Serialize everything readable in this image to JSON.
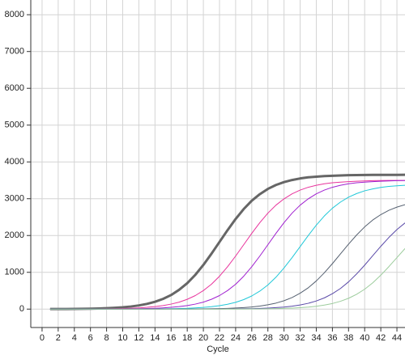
{
  "chart_data": {
    "type": "line",
    "x_label": "Cycle",
    "x": [
      1,
      2,
      3,
      4,
      5,
      6,
      7,
      8,
      9,
      10,
      11,
      12,
      13,
      14,
      15,
      16,
      17,
      18,
      19,
      20,
      21,
      22,
      23,
      24,
      25,
      26,
      27,
      28,
      29,
      30,
      31,
      32,
      33,
      34,
      35,
      36,
      37,
      38,
      39,
      40,
      41,
      42,
      43,
      44,
      45
    ],
    "series": [
      {
        "color": "#666666",
        "width": 3,
        "values": [
          2,
          3,
          4,
          6,
          8,
          12,
          17,
          24,
          35,
          50,
          70,
          100,
          142,
          199,
          277,
          383,
          526,
          704,
          931,
          1201,
          1504,
          1825,
          2146,
          2449,
          2719,
          2946,
          3124,
          3267,
          3373,
          3451,
          3508,
          3551,
          3581,
          3599,
          3614,
          3624,
          3632,
          3639,
          3643,
          3646,
          3647,
          3648,
          3649,
          3649,
          3650
        ]
      },
      {
        "color": "#e8339c",
        "width": 1,
        "values": [
          1,
          1,
          1,
          2,
          3,
          4,
          6,
          8,
          12,
          16,
          23,
          34,
          48,
          68,
          96,
          136,
          190,
          266,
          368,
          504,
          676,
          893,
          1152,
          1442,
          1750,
          2058,
          2349,
          2608,
          2825,
          2996,
          3133,
          3234,
          3311,
          3364,
          3406,
          3434,
          3451,
          3465,
          3476,
          3483,
          3490,
          3493,
          3496,
          3497,
          3498
        ]
      },
      {
        "color": "#a020d0",
        "width": 1,
        "values": [
          0,
          0,
          0,
          1,
          1,
          1,
          2,
          3,
          4,
          6,
          8,
          12,
          16,
          23,
          34,
          48,
          68,
          96,
          136,
          190,
          266,
          368,
          504,
          676,
          893,
          1152,
          1442,
          1750,
          2058,
          2349,
          2608,
          2825,
          2996,
          3133,
          3234,
          3311,
          3364,
          3406,
          3434,
          3451,
          3465,
          3476,
          3483,
          3490,
          3493
        ]
      },
      {
        "color": "#20c8d8",
        "width": 1,
        "values": [
          0,
          0,
          0,
          0,
          0,
          0,
          0,
          1,
          1,
          1,
          2,
          3,
          4,
          6,
          8,
          12,
          16,
          22,
          33,
          47,
          66,
          93,
          132,
          184,
          258,
          357,
          489,
          656,
          867,
          1119,
          1400,
          1699,
          1998,
          2281,
          2532,
          2743,
          2909,
          3042,
          3140,
          3215,
          3266,
          3307,
          3334,
          3351,
          3364
        ]
      },
      {
        "color": "#556070",
        "width": 1,
        "values": [
          0,
          0,
          0,
          0,
          0,
          0,
          0,
          0,
          0,
          0,
          0,
          0,
          1,
          1,
          1,
          2,
          3,
          3,
          5,
          7,
          10,
          14,
          20,
          29,
          41,
          58,
          82,
          117,
          163,
          228,
          315,
          432,
          579,
          765,
          987,
          1236,
          1500,
          1764,
          2013,
          2235,
          2421,
          2568,
          2685,
          2772,
          2838
        ]
      },
      {
        "color": "#5a4aa8",
        "width": 1,
        "values": [
          0,
          0,
          0,
          0,
          0,
          0,
          0,
          0,
          0,
          0,
          0,
          0,
          0,
          0,
          0,
          0,
          1,
          1,
          1,
          2,
          2,
          3,
          5,
          7,
          10,
          13,
          19,
          28,
          40,
          56,
          80,
          113,
          158,
          221,
          305,
          418,
          560,
          740,
          955,
          1195,
          1451,
          1706,
          1947,
          2162,
          2342
        ]
      },
      {
        "color": "#9ccc9c",
        "width": 1,
        "values": [
          0,
          0,
          0,
          0,
          0,
          0,
          0,
          0,
          0,
          0,
          0,
          0,
          0,
          0,
          0,
          0,
          0,
          0,
          0,
          1,
          1,
          1,
          2,
          2,
          3,
          5,
          6,
          10,
          13,
          18,
          27,
          38,
          54,
          77,
          109,
          152,
          213,
          294,
          403,
          541,
          714,
          922,
          1154,
          1400,
          1646
        ]
      }
    ],
    "xlim": [
      -1.4,
      45
    ],
    "ylim": [
      -500,
      8400
    ],
    "xticks": [
      0,
      2,
      4,
      6,
      8,
      10,
      12,
      14,
      16,
      18,
      20,
      22,
      24,
      26,
      28,
      30,
      32,
      34,
      36,
      38,
      40,
      42,
      44
    ],
    "yticks": [
      0,
      1000,
      2000,
      3000,
      4000,
      5000,
      6000,
      7000,
      8000
    ],
    "grid": true
  }
}
